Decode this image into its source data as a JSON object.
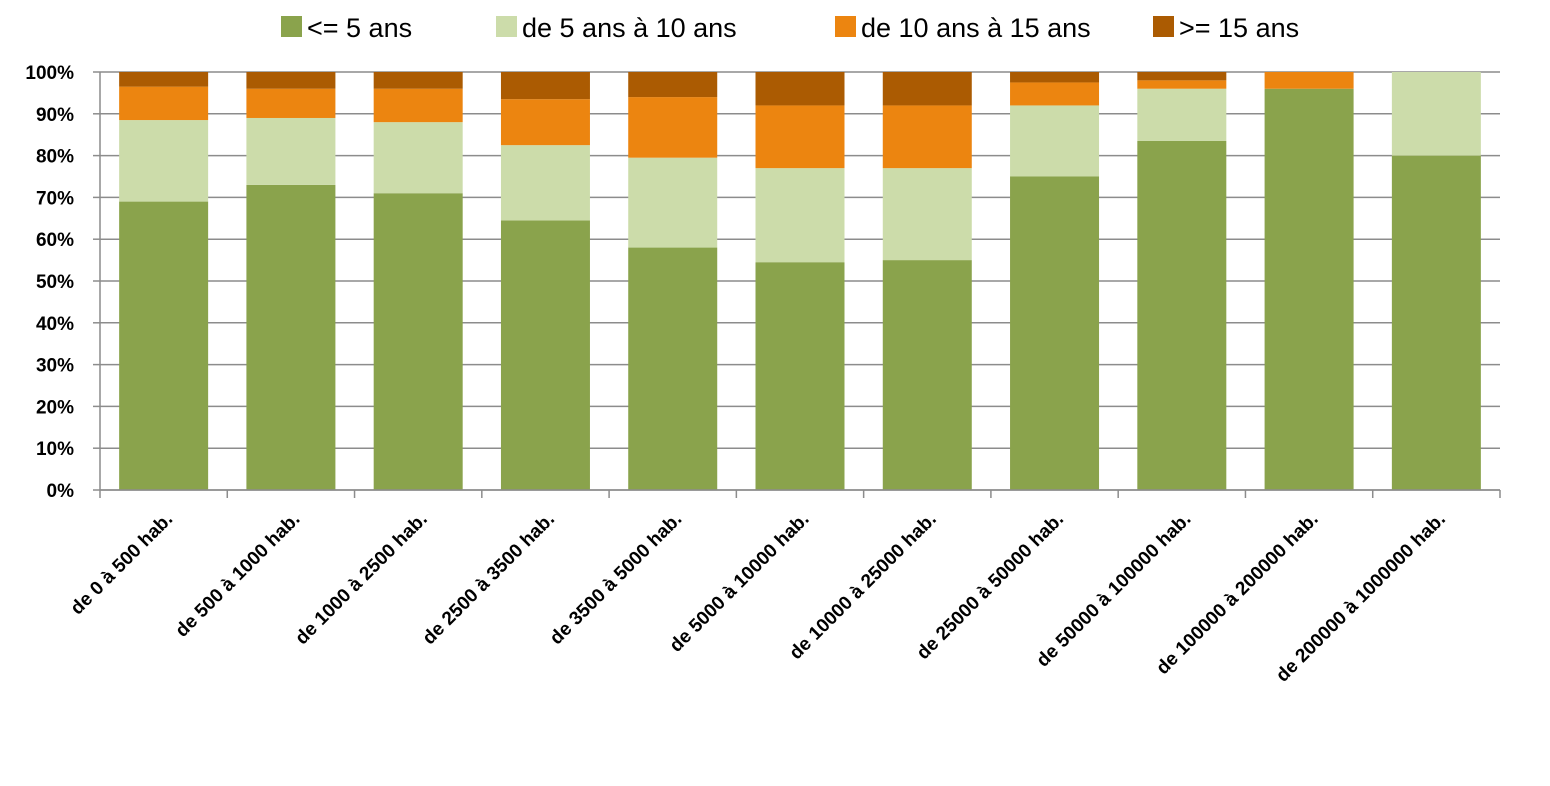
{
  "chart_data": {
    "type": "bar",
    "stacked": "percent",
    "categories": [
      "de 0 à 500 hab.",
      "de 500 à 1000 hab.",
      "de 1000 à 2500 hab.",
      "de 2500 à 3500 hab.",
      "de 3500 à 5000 hab.",
      "de 5000 à 10000 hab.",
      "de 10000 à 25000 hab.",
      "de 25000 à 50000 hab.",
      "de 50000 à 100000 hab.",
      "de 100000 à 200000 hab.",
      "de 200000 à 1000000 hab."
    ],
    "series": [
      {
        "name": "<= 5 ans",
        "color": "#8aa34c",
        "values": [
          69,
          73,
          71,
          64.5,
          58,
          54.5,
          55,
          75,
          83.5,
          96,
          80
        ]
      },
      {
        "name": "de 5 ans à 10 ans",
        "color": "#ccdcaa",
        "values": [
          19.5,
          16,
          17,
          18,
          21.5,
          22.5,
          22,
          17,
          12.5,
          0,
          20
        ]
      },
      {
        "name": "de 10 ans à 15 ans",
        "color": "#ec8510",
        "values": [
          8,
          7,
          8,
          11,
          14.5,
          15,
          15,
          5.5,
          2,
          4,
          0
        ]
      },
      {
        "name": ">= 15 ans",
        "color": "#ab5b02",
        "values": [
          3.5,
          4,
          4,
          6.5,
          6,
          8,
          8,
          2.5,
          2,
          0,
          0
        ]
      }
    ],
    "yticks": [
      "0%",
      "10%",
      "20%",
      "30%",
      "40%",
      "50%",
      "60%",
      "70%",
      "80%",
      "90%",
      "100%"
    ],
    "ylim": [
      0,
      100
    ],
    "grid": true,
    "legend": "top"
  }
}
